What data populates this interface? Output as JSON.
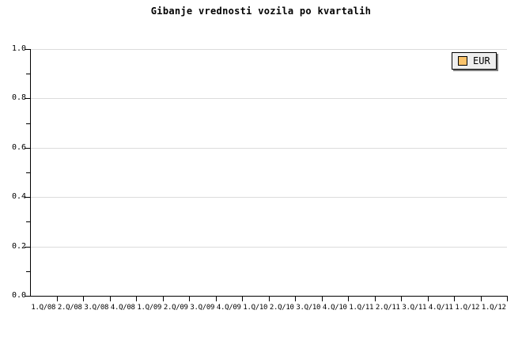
{
  "chart": {
    "title": "Gibanje vrednosti vozila po kvartalih",
    "legend": {
      "label": "EUR",
      "swatch_color": "#fac36b",
      "background": "#eeeeee",
      "shadow_color": "#808080"
    },
    "y_axis": {
      "tick_labels": [
        "1.0",
        "0.8",
        "0.6",
        "0.4",
        "0.2",
        "0.0"
      ]
    },
    "x_axis": {
      "tick_labels": [
        "1.Q/08",
        "2.Q/08",
        "3.Q/08",
        "4.Q/08",
        "1.Q/09",
        "2.Q/09",
        "3.Q/09",
        "4.Q/09",
        "1.Q/10",
        "2.Q/10",
        "3.Q/10",
        "4.Q/10",
        "1.Q/11",
        "2.Q/11",
        "3.Q/11",
        "4.Q/11",
        "1.Q/12",
        "1.Q/12"
      ]
    },
    "colors": {
      "grid": "#dcdcdc",
      "axis": "#000000",
      "background": "#ffffff"
    }
  },
  "chart_data": {
    "type": "line",
    "title": "Gibanje vrednosti vozila po kvartalih",
    "categories": [
      "1.Q/08",
      "2.Q/08",
      "3.Q/08",
      "4.Q/08",
      "1.Q/09",
      "2.Q/09",
      "3.Q/09",
      "4.Q/09",
      "1.Q/10",
      "2.Q/10",
      "3.Q/10",
      "4.Q/10",
      "1.Q/11",
      "2.Q/11",
      "3.Q/11",
      "4.Q/11",
      "1.Q/12",
      "1.Q/12"
    ],
    "series": [
      {
        "name": "EUR",
        "values": []
      }
    ],
    "xlabel": "",
    "ylabel": "",
    "ylim": [
      0.0,
      1.0
    ],
    "y_ticks": [
      0.0,
      0.2,
      0.4,
      0.6,
      0.8,
      1.0
    ],
    "y_minor_ticks": [
      0.1,
      0.3,
      0.5,
      0.7,
      0.9
    ],
    "grid": "horizontal",
    "legend_position": "top-right",
    "plot_is_empty": true
  }
}
